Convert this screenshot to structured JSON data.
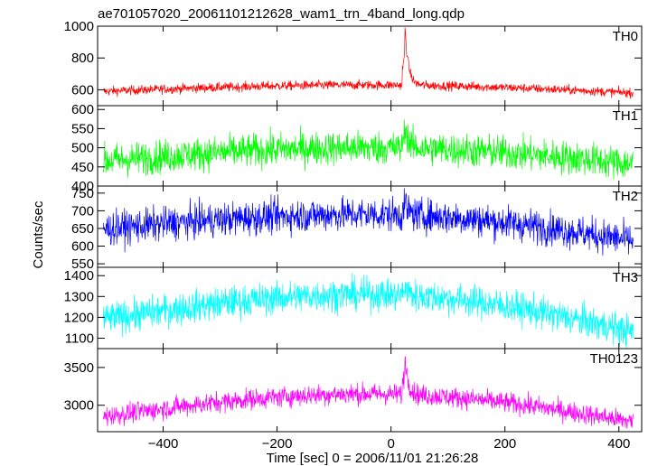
{
  "chart_data": {
    "type": "line",
    "title": "ae701057020_20061101212628_wam1_trn_4band_long.qdp",
    "xlabel": "Time [sec] 0 = 2006/11/01 21:26:28",
    "ylabel": "Counts/sec",
    "xlim": [
      -515,
      440
    ],
    "x_ticks": [
      -400,
      -200,
      0,
      200,
      400
    ],
    "x_tick_labels": [
      "−400",
      "−200",
      "0",
      "200",
      "400"
    ],
    "x_range_data": [
      -505,
      425
    ],
    "burst_time": 24,
    "panels": [
      {
        "name": "TH0",
        "color": "#ff0000",
        "ylim": [
          500,
          1000
        ],
        "ticks": [
          600,
          800,
          1000
        ],
        "series": {
          "start": 590,
          "peak": 630,
          "end": 580,
          "noise": 32,
          "spike": 400
        }
      },
      {
        "name": "TH1",
        "color": "#00ff00",
        "ylim": [
          400,
          610
        ],
        "ticks": [
          400,
          450,
          500,
          550,
          600
        ],
        "series": {
          "start": 465,
          "peak": 500,
          "end": 458,
          "noise": 48,
          "spike": 70
        }
      },
      {
        "name": "TH2",
        "color": "#0000ff",
        "ylim": [
          540,
          770
        ],
        "ticks": [
          550,
          600,
          650,
          700,
          750
        ],
        "series": {
          "start": 648,
          "peak": 690,
          "end": 615,
          "noise": 52,
          "spike": 40
        }
      },
      {
        "name": "TH3",
        "color": "#00ffff",
        "ylim": [
          1050,
          1440
        ],
        "ticks": [
          1100,
          1200,
          1300,
          1400
        ],
        "series": {
          "start": 1190,
          "peak": 1310,
          "end": 1130,
          "noise": 85,
          "spike": 50
        }
      },
      {
        "name": "TH0123",
        "color": "#ff00ff",
        "ylim": [
          2650,
          3750
        ],
        "ticks": [
          3000,
          3500
        ],
        "series": {
          "start": 2850,
          "peak": 3150,
          "end": 2780,
          "noise": 150,
          "spike": 550
        }
      }
    ]
  }
}
